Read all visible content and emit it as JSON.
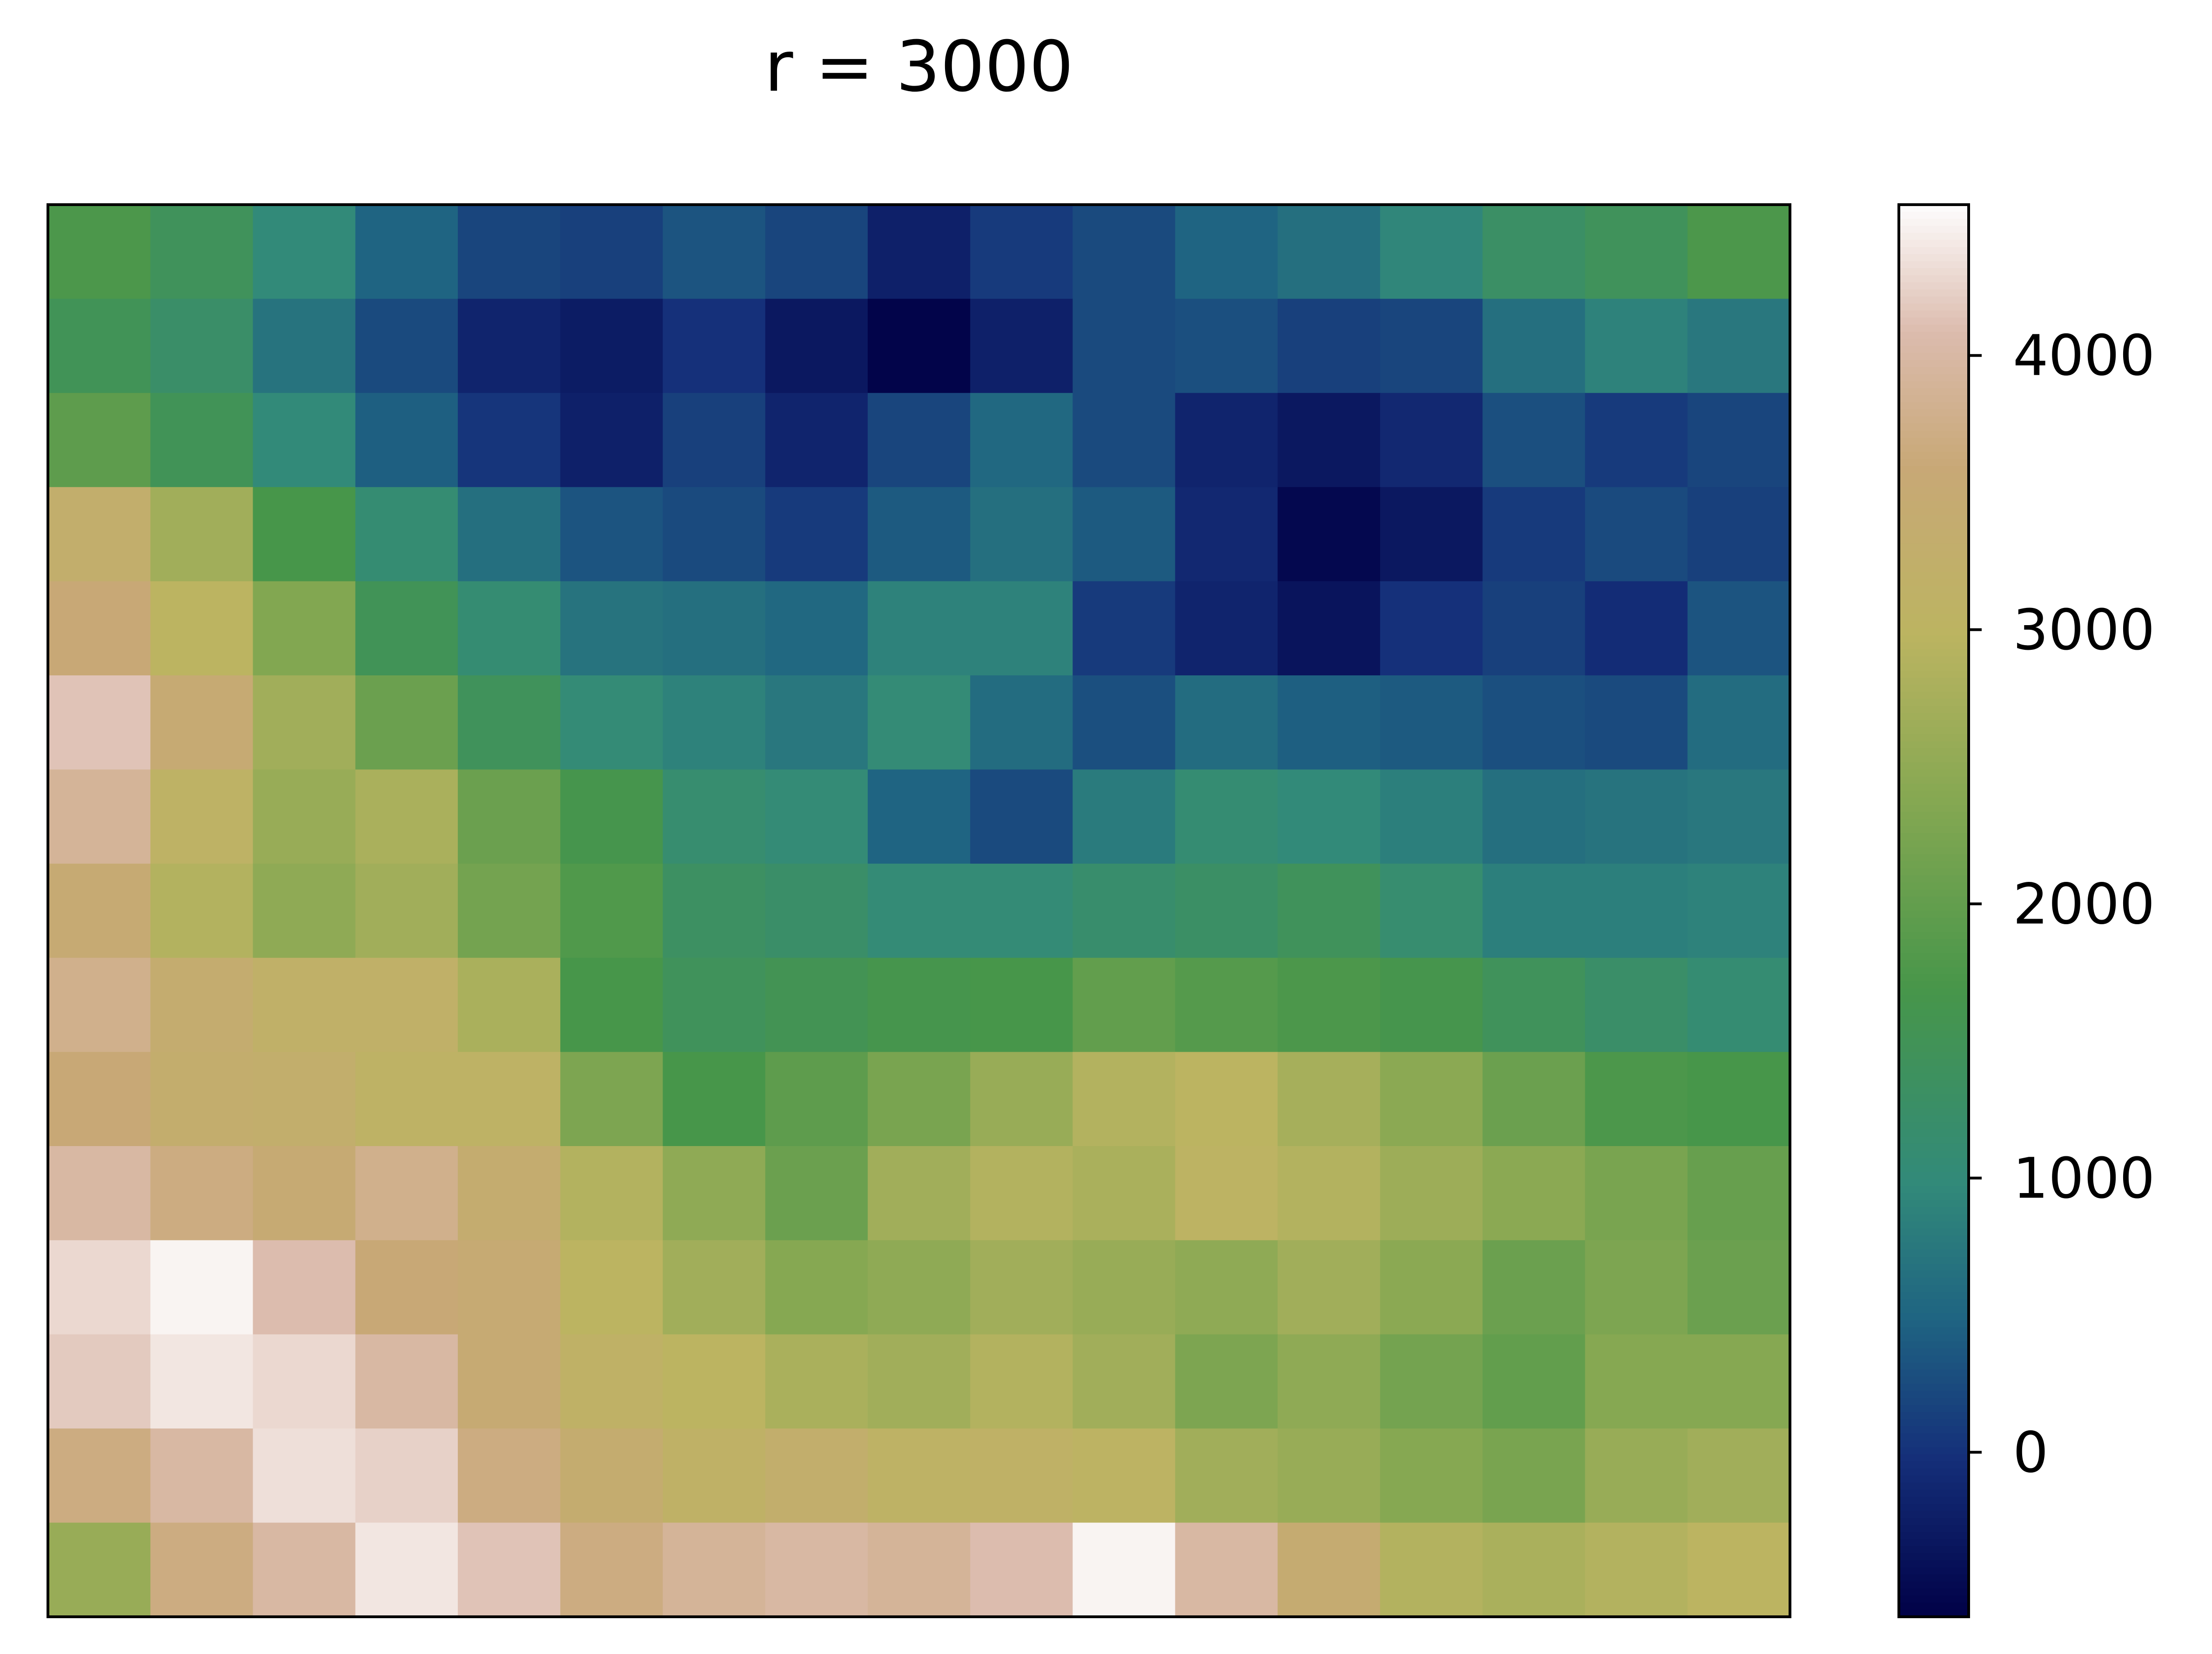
{
  "chart_data": {
    "type": "heatmap",
    "title": "r = 3000",
    "xlabel": "",
    "ylabel": "",
    "x_ticks": [],
    "y_ticks": [],
    "grid": false,
    "legend": "none",
    "colormap": "gist_earth",
    "colorbar": {
      "position": "right",
      "range": [
        -600,
        4550
      ],
      "ticks": [
        0,
        1000,
        2000,
        3000,
        4000
      ],
      "tick_labels": [
        "0",
        "1000",
        "2000",
        "3000",
        "4000"
      ]
    },
    "colormap_stops": [
      {
        "value": -600,
        "color": "#000046"
      },
      {
        "value": 0,
        "color": "#15307a"
      },
      {
        "value": 500,
        "color": "#1f6482"
      },
      {
        "value": 1000,
        "color": "#328a79"
      },
      {
        "value": 1700,
        "color": "#47964a"
      },
      {
        "value": 2400,
        "color": "#86a852"
      },
      {
        "value": 3000,
        "color": "#bcb461"
      },
      {
        "value": 3600,
        "color": "#c8a876"
      },
      {
        "value": 4100,
        "color": "#dcbcae"
      },
      {
        "value": 4550,
        "color": "#fdfbfb"
      }
    ],
    "value_grid": [
      [
        1750,
        1450,
        1000,
        500,
        200,
        150,
        350,
        200,
        -200,
        100,
        250,
        500,
        650,
        950,
        1300,
        1450,
        1750
      ],
      [
        1500,
        1250,
        700,
        250,
        -150,
        -250,
        0,
        -300,
        -550,
        -200,
        250,
        300,
        150,
        200,
        650,
        900,
        750
      ],
      [
        1950,
        1500,
        1000,
        450,
        50,
        -200,
        150,
        -150,
        200,
        550,
        250,
        -150,
        -300,
        -100,
        300,
        100,
        200
      ],
      [
        3300,
        2700,
        1700,
        1100,
        650,
        350,
        250,
        100,
        400,
        650,
        400,
        -100,
        -500,
        -300,
        100,
        250,
        150
      ],
      [
        3600,
        3000,
        2350,
        1500,
        1100,
        700,
        650,
        550,
        900,
        900,
        100,
        -150,
        -350,
        0,
        150,
        -50,
        350
      ],
      [
        4150,
        3500,
        2700,
        2100,
        1450,
        1050,
        900,
        750,
        1050,
        600,
        300,
        600,
        450,
        400,
        300,
        250,
        600
      ],
      [
        3900,
        3100,
        2600,
        2800,
        2100,
        1650,
        1150,
        1050,
        500,
        250,
        800,
        1100,
        1000,
        850,
        650,
        700,
        750
      ],
      [
        3500,
        2900,
        2500,
        2700,
        2200,
        1800,
        1350,
        1250,
        1050,
        1050,
        1200,
        1300,
        1450,
        1150,
        850,
        850,
        900
      ],
      [
        3800,
        3400,
        3200,
        3200,
        2800,
        1700,
        1450,
        1550,
        1650,
        1700,
        2000,
        1850,
        1750,
        1650,
        1450,
        1250,
        1100
      ],
      [
        3600,
        3350,
        3300,
        3100,
        3100,
        2300,
        1700,
        1950,
        2250,
        2600,
        2900,
        3000,
        2750,
        2450,
        2100,
        1750,
        1700
      ],
      [
        4000,
        3700,
        3500,
        3800,
        3400,
        2900,
        2500,
        2100,
        2700,
        2900,
        2800,
        3050,
        2900,
        2650,
        2450,
        2250,
        2050
      ],
      [
        4300,
        4500,
        4100,
        3600,
        3500,
        3000,
        2700,
        2400,
        2500,
        2700,
        2600,
        2500,
        2700,
        2450,
        2100,
        2300,
        2100
      ],
      [
        4200,
        4400,
        4300,
        4000,
        3500,
        3150,
        3000,
        2800,
        2700,
        2900,
        2700,
        2300,
        2500,
        2200,
        2000,
        2400,
        2400
      ],
      [
        3700,
        4000,
        4350,
        4250,
        3700,
        3400,
        3150,
        3300,
        3100,
        3150,
        3050,
        2700,
        2600,
        2400,
        2250,
        2600,
        2700
      ],
      [
        2600,
        3700,
        4000,
        4400,
        4150,
        3700,
        3900,
        4000,
        3900,
        4100,
        4500,
        4000,
        3450,
        2900,
        2800,
        2900,
        3000
      ]
    ]
  }
}
